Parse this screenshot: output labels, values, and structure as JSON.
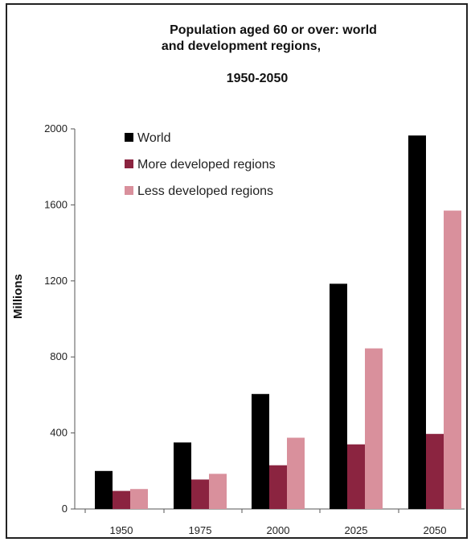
{
  "chart_data": {
    "type": "bar",
    "title_lines": [
      "Population aged 60 or over: world",
      "and development regions,",
      "1950-2050"
    ],
    "ylabel": "Millions",
    "xlabel": "",
    "categories": [
      "1950",
      "1975",
      "2000",
      "2025",
      "2050"
    ],
    "ylim": [
      0,
      2000
    ],
    "yticks": [
      0,
      400,
      800,
      1200,
      1600,
      2000
    ],
    "series": [
      {
        "name": "World",
        "color": "#000000",
        "values": [
          200,
          350,
          605,
          1185,
          1965
        ]
      },
      {
        "name": "More developed regions",
        "color": "#8b2440",
        "values": [
          95,
          155,
          230,
          340,
          395
        ]
      },
      {
        "name": "Less developed regions",
        "color": "#d9909c",
        "values": [
          105,
          185,
          375,
          845,
          1570
        ]
      }
    ],
    "legend_position": "top-left",
    "grid": false
  }
}
